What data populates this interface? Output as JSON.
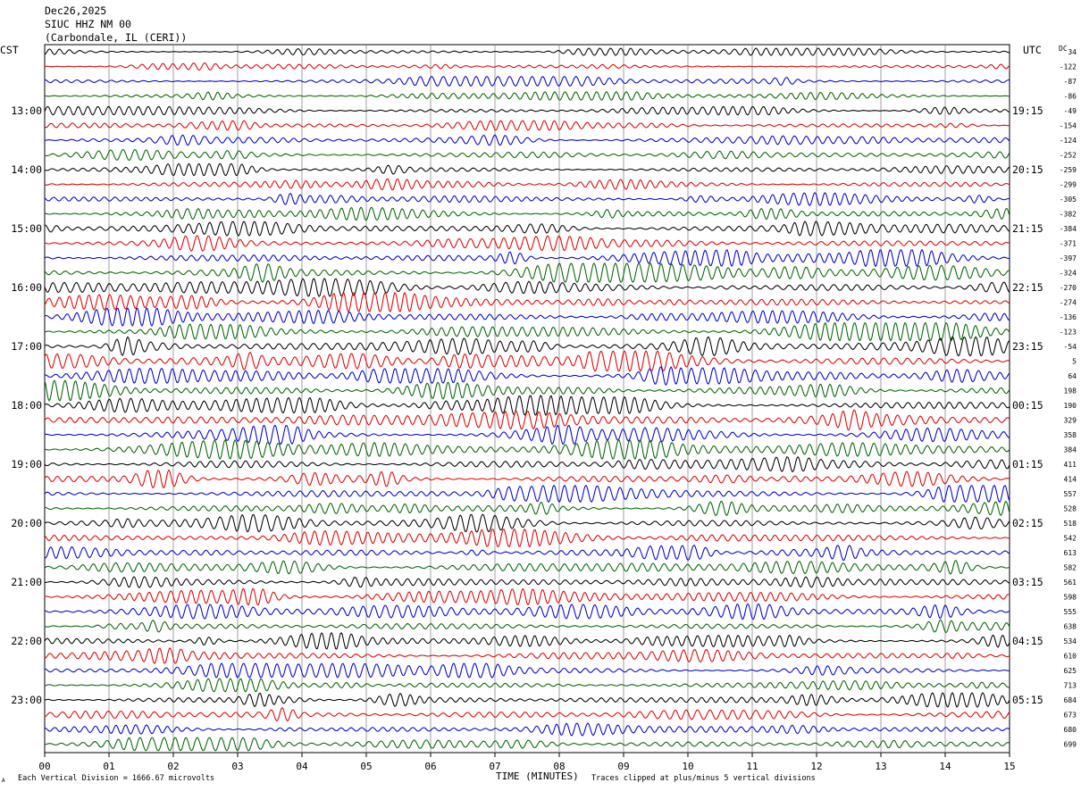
{
  "header": {
    "date": "Dec26,2025",
    "station": "SIUC HHZ NM 00",
    "location": "(Carbondale, IL (CERI))"
  },
  "left_tz": "CST",
  "right_tz": "UTC",
  "dc_label": "DC",
  "footer": {
    "scale": "Each Vertical Division = 1666.67 microvolts",
    "xlabel": "TIME (MINUTES)",
    "clip": "Traces clipped at plus/minus 5 vertical divisions",
    "corner_mark": "A"
  },
  "chart_data": {
    "type": "line",
    "kind": "helicorder",
    "x_ticks": [
      "00",
      "01",
      "02",
      "03",
      "04",
      "05",
      "06",
      "07",
      "08",
      "09",
      "10",
      "11",
      "12",
      "13",
      "14",
      "15"
    ],
    "xlim": [
      0,
      15
    ],
    "trace_colors": [
      "#000000",
      "#e00000",
      "#0000d0",
      "#006400"
    ],
    "left_hour_labels": [
      {
        "row": 4,
        "label": "13:00"
      },
      {
        "row": 8,
        "label": "14:00"
      },
      {
        "row": 12,
        "label": "15:00"
      },
      {
        "row": 16,
        "label": "16:00"
      },
      {
        "row": 20,
        "label": "17:00"
      },
      {
        "row": 24,
        "label": "18:00"
      },
      {
        "row": 28,
        "label": "19:00"
      },
      {
        "row": 32,
        "label": "20:00"
      },
      {
        "row": 36,
        "label": "21:00"
      },
      {
        "row": 40,
        "label": "22:00"
      },
      {
        "row": 44,
        "label": "23:00"
      }
    ],
    "right_hour_labels": [
      {
        "row": 4,
        "label": "19:15"
      },
      {
        "row": 8,
        "label": "20:15"
      },
      {
        "row": 12,
        "label": "21:15"
      },
      {
        "row": 16,
        "label": "22:15"
      },
      {
        "row": 20,
        "label": "23:15"
      },
      {
        "row": 24,
        "label": "00:15"
      },
      {
        "row": 28,
        "label": "01:15"
      },
      {
        "row": 32,
        "label": "02:15"
      },
      {
        "row": 36,
        "label": "03:15"
      },
      {
        "row": 40,
        "label": "04:15"
      },
      {
        "row": 44,
        "label": "05:15"
      }
    ],
    "dc_offsets": [
      "34",
      "-122",
      "-87",
      "-86",
      "-49",
      "-154",
      "-124",
      "-252",
      "-259",
      "-299",
      "-305",
      "-382",
      "-384",
      "-371",
      "-397",
      "-324",
      "-270",
      "-274",
      "-136",
      "-123",
      "-54",
      "5",
      "64",
      "198",
      "190",
      "329",
      "358",
      "384",
      "411",
      "414",
      "557",
      "528",
      "518",
      "542",
      "613",
      "582",
      "561",
      "598",
      "555",
      "638",
      "534",
      "610",
      "625",
      "713",
      "684",
      "673",
      "680",
      "699"
    ],
    "trace_amplitude_level": [
      0.3,
      0.3,
      0.4,
      0.35,
      0.35,
      0.4,
      0.45,
      0.5,
      0.5,
      0.5,
      0.55,
      0.6,
      0.6,
      0.65,
      0.7,
      0.8,
      0.8,
      0.8,
      0.75,
      0.75,
      0.8,
      0.85,
      0.8,
      0.85,
      0.85,
      0.85,
      0.8,
      0.8,
      0.8,
      0.75,
      0.7,
      0.7,
      0.75,
      0.75,
      0.7,
      0.65,
      0.7,
      0.7,
      0.65,
      0.6,
      0.7,
      0.65,
      0.6,
      0.55,
      0.6,
      0.65,
      0.55,
      0.55
    ]
  }
}
